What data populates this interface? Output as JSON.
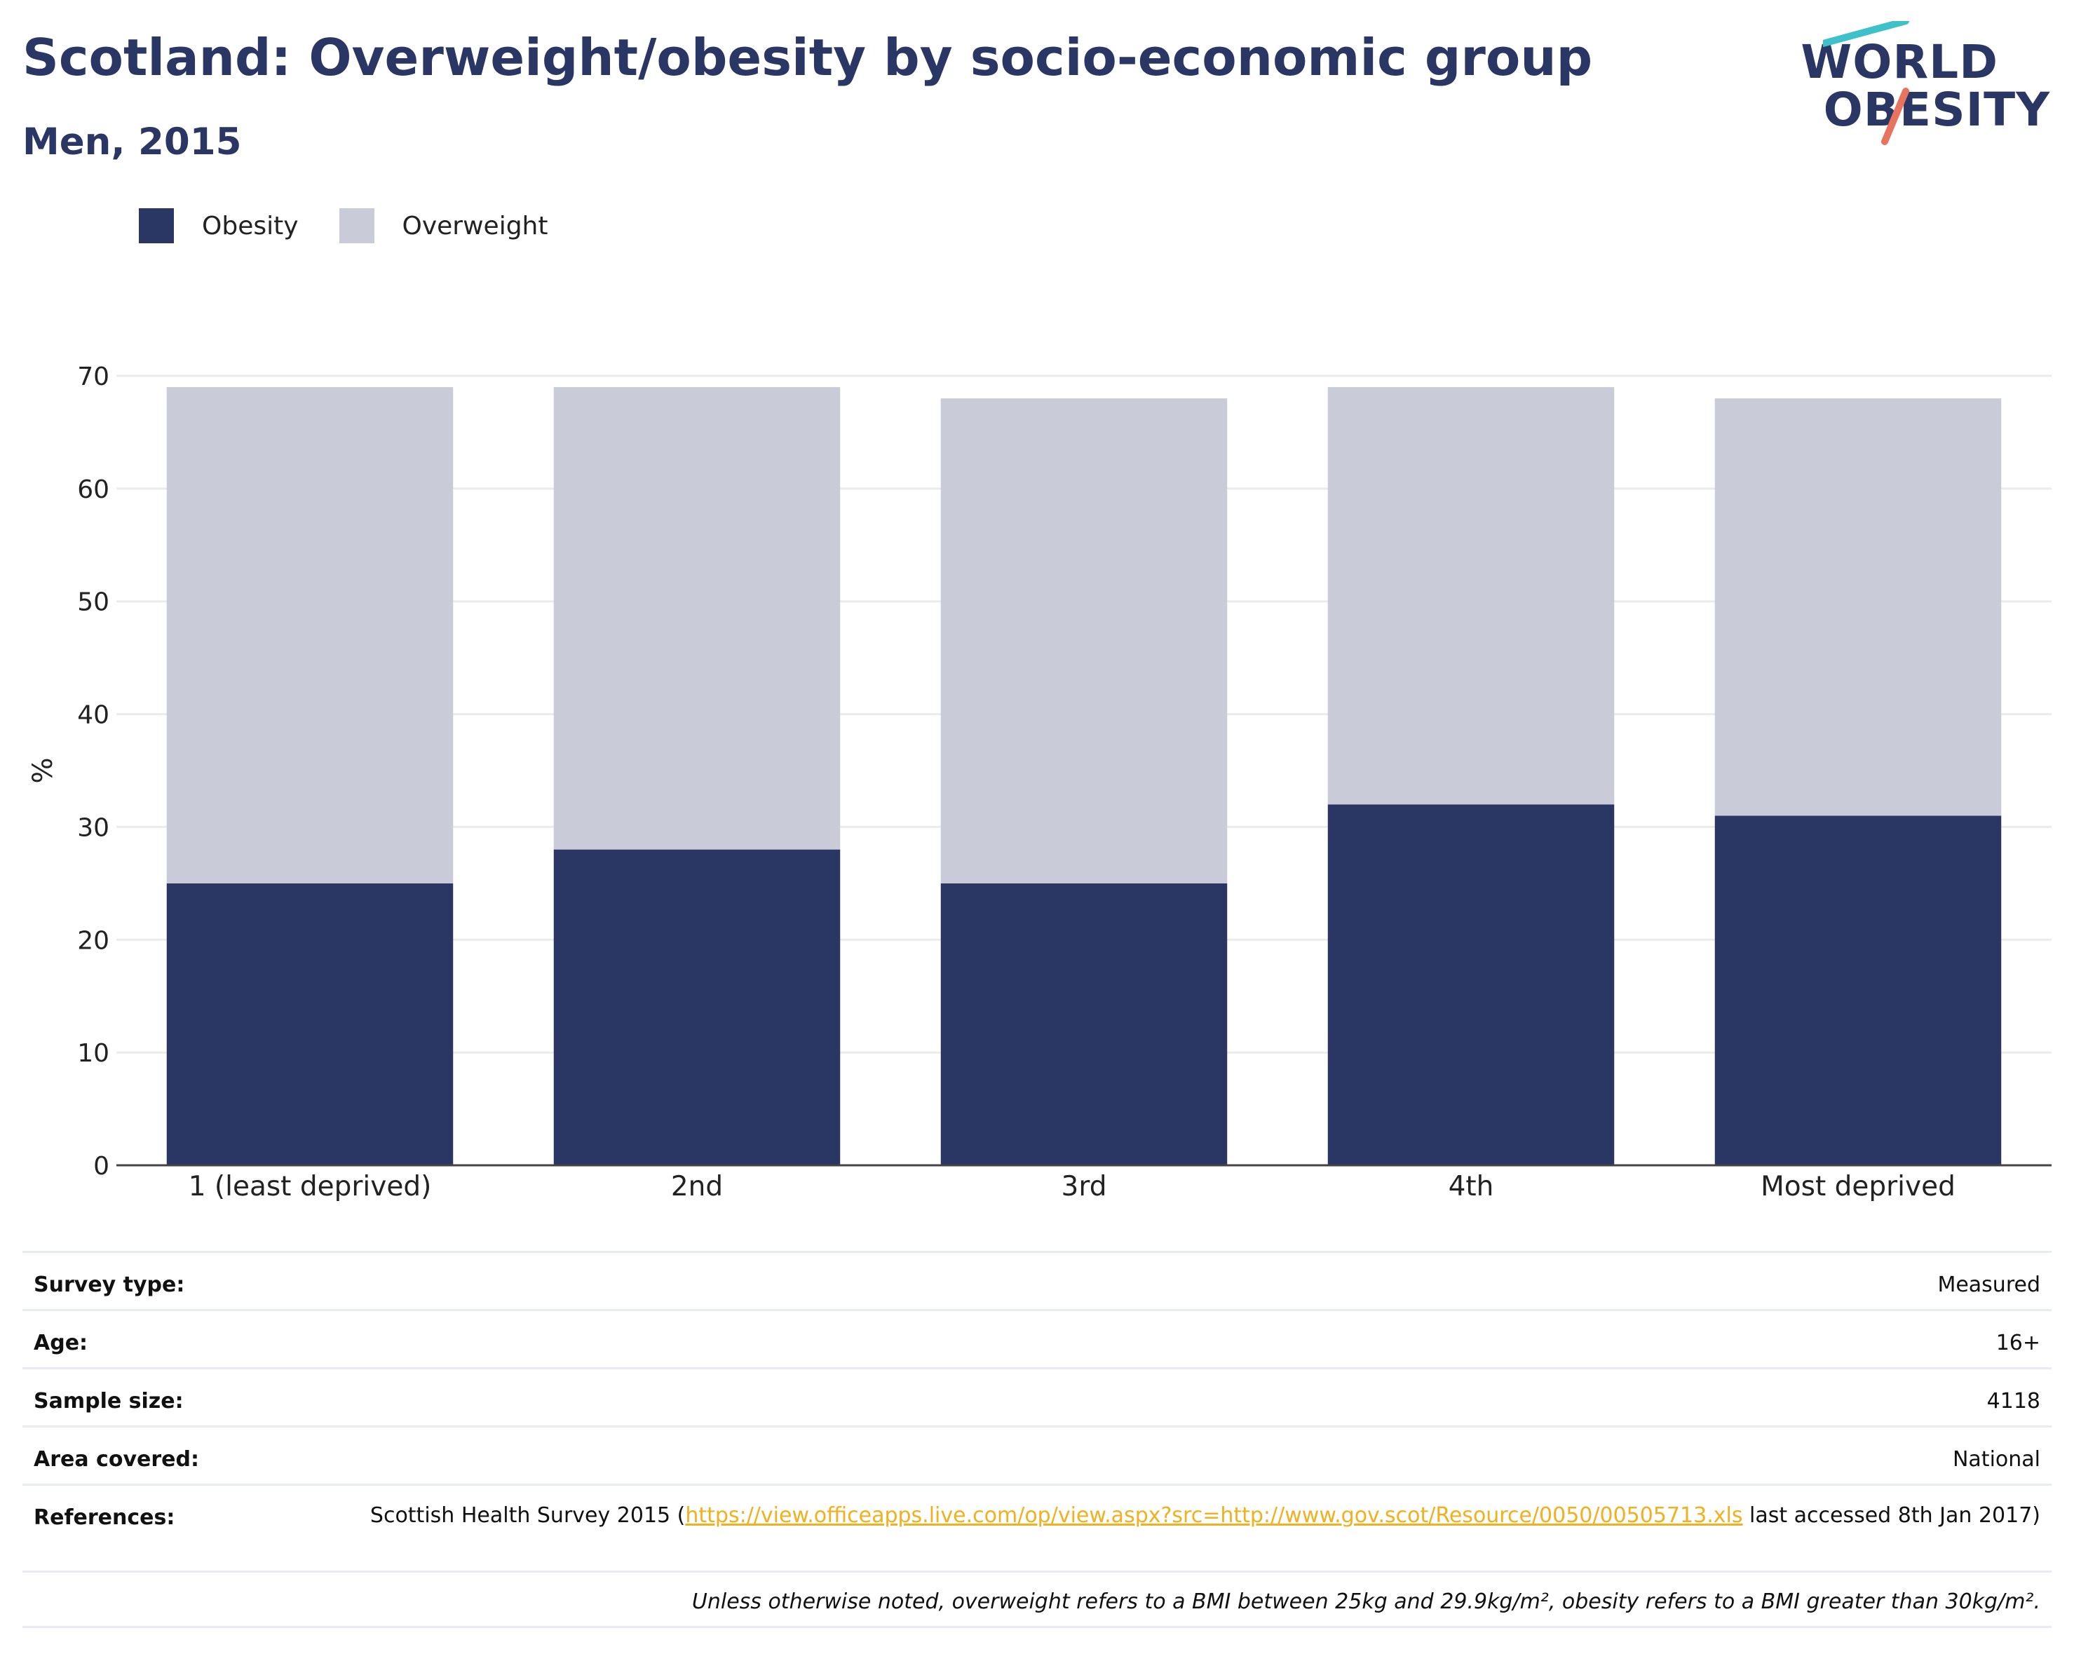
{
  "title": "Scotland: Overweight/obesity by socio-economic group",
  "subtitle": "Men, 2015",
  "logo": {
    "line1": "WORLD",
    "line2": "OBESITY",
    "accent_colors": [
      "#3fc1c9",
      "#e8735f"
    ]
  },
  "colors": {
    "obesity": "#2a3663",
    "overweight": "#c9ccd8",
    "text": "#2a3663",
    "link": "#f2b01e",
    "grid": "#ebebeb"
  },
  "legend": [
    {
      "label": "Obesity",
      "color": "#2a3663"
    },
    {
      "label": "Overweight",
      "color": "#c9ccd8"
    }
  ],
  "chart_data": {
    "type": "bar",
    "stacked": true,
    "categories": [
      "1 (least deprived)",
      "2nd",
      "3rd",
      "4th",
      "Most deprived"
    ],
    "series": [
      {
        "name": "Obesity",
        "values": [
          25,
          28,
          25,
          32,
          31
        ]
      },
      {
        "name": "Overweight",
        "values": [
          44,
          41,
          43,
          37,
          37
        ]
      }
    ],
    "ylabel": "%",
    "ylim": [
      0,
      70
    ],
    "yticks": [
      0,
      10,
      20,
      30,
      40,
      50,
      60,
      70
    ],
    "grid": true,
    "legend_position": "top-left"
  },
  "details": {
    "survey_type": {
      "label": "Survey type:",
      "value": "Measured"
    },
    "age": {
      "label": "Age:",
      "value": "16+"
    },
    "sample_size": {
      "label": "Sample size:",
      "value": "4118"
    },
    "area_covered": {
      "label": "Area covered:",
      "value": "National"
    },
    "references": {
      "label": "References:",
      "prefix": "Scottish Health Survey 2015 (",
      "link": "https://view.officeapps.live.com/op/view.aspx?src=http://www.gov.scot/Resource/0050/00505713.xls",
      "suffix": " last accessed 8th Jan 2017)"
    },
    "note": "Unless otherwise noted, overweight refers to a BMI between 25kg and 29.9kg/m², obesity refers to a BMI greater than 30kg/m²."
  }
}
